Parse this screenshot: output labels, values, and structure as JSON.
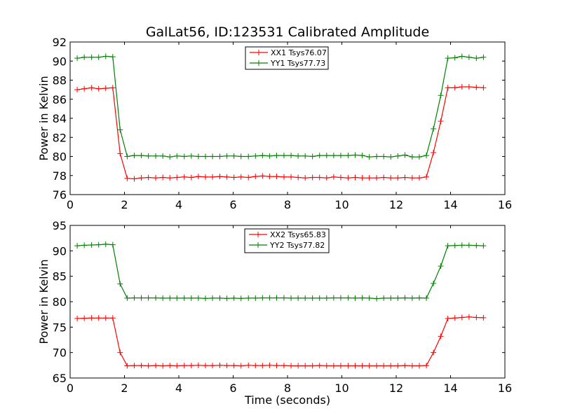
{
  "title": "GalLat56, ID:123531 Calibrated Amplitude",
  "xlabel": "Time (seconds)",
  "chart_data": [
    {
      "type": "line",
      "xlim": [
        0,
        16
      ],
      "ylim": [
        76,
        92
      ],
      "xticks": [
        0,
        2,
        4,
        6,
        8,
        10,
        12,
        14,
        16
      ],
      "yticks": [
        76,
        78,
        80,
        82,
        84,
        86,
        88,
        90,
        92
      ],
      "ylabel": "Power in Kelvin",
      "xlabel": "",
      "legend_position": "top-center",
      "series": [
        {
          "name": "XX1 Tsys76.07",
          "color": "#ff0000",
          "x": [
            0.26,
            0.52,
            0.79,
            1.05,
            1.31,
            1.57,
            1.84,
            2.1,
            2.36,
            2.62,
            2.88,
            3.15,
            3.41,
            3.67,
            3.93,
            4.2,
            4.46,
            4.72,
            4.98,
            5.24,
            5.51,
            5.77,
            6.03,
            6.29,
            6.56,
            6.82,
            7.08,
            7.34,
            7.6,
            7.87,
            8.13,
            8.39,
            8.65,
            8.92,
            9.18,
            9.44,
            9.7,
            9.96,
            10.23,
            10.49,
            10.75,
            11.01,
            11.28,
            11.54,
            11.8,
            12.06,
            12.32,
            12.59,
            12.85,
            13.11,
            13.37,
            13.64,
            13.9,
            14.16,
            14.42,
            14.68,
            14.95,
            15.21
          ],
          "y": [
            87.0,
            87.1,
            87.2,
            87.1,
            87.15,
            87.2,
            80.3,
            77.7,
            77.65,
            77.75,
            77.8,
            77.75,
            77.8,
            77.75,
            77.8,
            77.85,
            77.8,
            77.9,
            77.85,
            77.85,
            77.9,
            77.85,
            77.8,
            77.85,
            77.8,
            77.9,
            77.95,
            77.9,
            77.9,
            77.85,
            77.85,
            77.8,
            77.75,
            77.8,
            77.8,
            77.75,
            77.85,
            77.8,
            77.75,
            77.8,
            77.75,
            77.75,
            77.75,
            77.8,
            77.75,
            77.75,
            77.8,
            77.75,
            77.75,
            77.85,
            80.4,
            83.7,
            87.2,
            87.2,
            87.3,
            87.3,
            87.25,
            87.2
          ]
        },
        {
          "name": "YY1 Tsys77.73",
          "color": "#008000",
          "x": [
            0.26,
            0.52,
            0.79,
            1.05,
            1.31,
            1.57,
            1.84,
            2.1,
            2.36,
            2.62,
            2.88,
            3.15,
            3.41,
            3.67,
            3.93,
            4.2,
            4.46,
            4.72,
            4.98,
            5.24,
            5.51,
            5.77,
            6.03,
            6.29,
            6.56,
            6.82,
            7.08,
            7.34,
            7.6,
            7.87,
            8.13,
            8.39,
            8.65,
            8.92,
            9.18,
            9.44,
            9.7,
            9.96,
            10.23,
            10.49,
            10.75,
            11.01,
            11.28,
            11.54,
            11.8,
            12.06,
            12.32,
            12.59,
            12.85,
            13.11,
            13.37,
            13.64,
            13.9,
            14.16,
            14.42,
            14.68,
            14.95,
            15.21
          ],
          "y": [
            90.3,
            90.4,
            90.4,
            90.4,
            90.5,
            90.45,
            82.8,
            80.0,
            80.1,
            80.1,
            80.05,
            80.05,
            80.05,
            79.95,
            80.05,
            80.0,
            80.05,
            80.0,
            80.0,
            80.0,
            80.0,
            80.05,
            80.05,
            80.0,
            80.0,
            80.05,
            80.1,
            80.05,
            80.1,
            80.1,
            80.1,
            80.05,
            80.05,
            80.0,
            80.1,
            80.1,
            80.1,
            80.1,
            80.1,
            80.15,
            80.1,
            79.95,
            80.0,
            80.0,
            79.95,
            80.05,
            80.15,
            79.95,
            79.95,
            80.1,
            82.9,
            86.4,
            90.3,
            90.35,
            90.5,
            90.4,
            90.3,
            90.4
          ]
        }
      ]
    },
    {
      "type": "line",
      "xlim": [
        0,
        16
      ],
      "ylim": [
        65,
        95
      ],
      "xticks": [
        0,
        2,
        4,
        6,
        8,
        10,
        12,
        14,
        16
      ],
      "yticks": [
        65,
        70,
        75,
        80,
        85,
        90,
        95
      ],
      "ylabel": "Power in Kelvin",
      "xlabel": "Time (seconds)",
      "legend_position": "top-center",
      "series": [
        {
          "name": "XX2 Tsys65.83",
          "color": "#ff0000",
          "x": [
            0.26,
            0.52,
            0.79,
            1.05,
            1.31,
            1.57,
            1.84,
            2.1,
            2.36,
            2.62,
            2.88,
            3.15,
            3.41,
            3.67,
            3.93,
            4.2,
            4.46,
            4.72,
            4.98,
            5.24,
            5.51,
            5.77,
            6.03,
            6.29,
            6.56,
            6.82,
            7.08,
            7.34,
            7.6,
            7.87,
            8.13,
            8.39,
            8.65,
            8.92,
            9.18,
            9.44,
            9.7,
            9.96,
            10.23,
            10.49,
            10.75,
            11.01,
            11.28,
            11.54,
            11.8,
            12.06,
            12.32,
            12.59,
            12.85,
            13.11,
            13.37,
            13.64,
            13.9,
            14.16,
            14.42,
            14.68,
            14.95,
            15.21
          ],
          "y": [
            76.7,
            76.75,
            76.8,
            76.8,
            76.8,
            76.8,
            70.0,
            67.4,
            67.45,
            67.45,
            67.4,
            67.45,
            67.4,
            67.45,
            67.4,
            67.45,
            67.45,
            67.5,
            67.45,
            67.45,
            67.5,
            67.45,
            67.45,
            67.4,
            67.5,
            67.45,
            67.45,
            67.5,
            67.45,
            67.45,
            67.4,
            67.4,
            67.4,
            67.4,
            67.45,
            67.4,
            67.4,
            67.4,
            67.4,
            67.4,
            67.4,
            67.4,
            67.4,
            67.4,
            67.4,
            67.4,
            67.45,
            67.4,
            67.4,
            67.45,
            70.0,
            73.2,
            76.7,
            76.8,
            76.9,
            77.0,
            76.9,
            76.85
          ]
        },
        {
          "name": "YY2 Tsys77.82",
          "color": "#008000",
          "x": [
            0.26,
            0.52,
            0.79,
            1.05,
            1.31,
            1.57,
            1.84,
            2.1,
            2.36,
            2.62,
            2.88,
            3.15,
            3.41,
            3.67,
            3.93,
            4.2,
            4.46,
            4.72,
            4.98,
            5.24,
            5.51,
            5.77,
            6.03,
            6.29,
            6.56,
            6.82,
            7.08,
            7.34,
            7.6,
            7.87,
            8.13,
            8.39,
            8.65,
            8.92,
            9.18,
            9.44,
            9.7,
            9.96,
            10.23,
            10.49,
            10.75,
            11.01,
            11.28,
            11.54,
            11.8,
            12.06,
            12.32,
            12.59,
            12.85,
            13.11,
            13.37,
            13.64,
            13.9,
            14.16,
            14.42,
            14.68,
            14.95,
            15.21
          ],
          "y": [
            91.0,
            91.1,
            91.15,
            91.2,
            91.3,
            91.2,
            83.5,
            80.7,
            80.75,
            80.75,
            80.75,
            80.75,
            80.7,
            80.7,
            80.7,
            80.7,
            80.7,
            80.7,
            80.65,
            80.7,
            80.7,
            80.65,
            80.7,
            80.65,
            80.7,
            80.7,
            80.75,
            80.75,
            80.75,
            80.75,
            80.7,
            80.7,
            80.7,
            80.7,
            80.7,
            80.7,
            80.75,
            80.75,
            80.75,
            80.7,
            80.75,
            80.7,
            80.6,
            80.7,
            80.7,
            80.7,
            80.75,
            80.7,
            80.75,
            80.7,
            83.6,
            87.0,
            91.0,
            91.05,
            91.1,
            91.1,
            91.05,
            91.0
          ]
        }
      ]
    }
  ]
}
